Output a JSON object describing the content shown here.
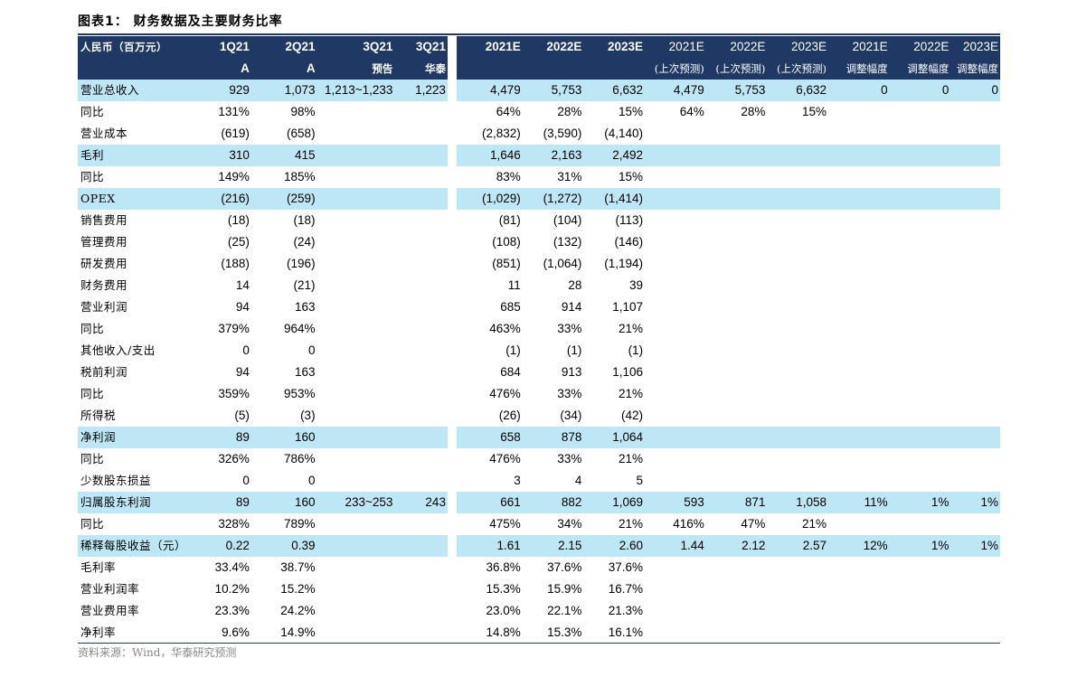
{
  "title": "图表1：  财务数据及主要财务比率",
  "source": "资料来源：Wind，华泰研究预测",
  "header": {
    "label": "人民币（百万元）",
    "cols_top": [
      "1Q21",
      "2Q21",
      "3Q21",
      "3Q21",
      "2021E",
      "2022E",
      "2023E",
      "2021E",
      "2022E",
      "2023E",
      "2021E",
      "2022E",
      "2023E"
    ],
    "cols_bottom": [
      "A",
      "A",
      "预告",
      "华泰",
      "",
      "",
      "",
      "(上次预测)",
      "(上次预测)",
      "(上次预测)",
      "调整幅度",
      "调整幅度",
      "调整幅度"
    ]
  },
  "rows": [
    {
      "label": "营业总收入",
      "hl": true,
      "v": [
        "929",
        "1,073",
        "1,213~1,233",
        "1,223",
        "4,479",
        "5,753",
        "6,632",
        "4,479",
        "5,753",
        "6,632",
        "0",
        "0",
        "0"
      ]
    },
    {
      "label": "同比",
      "hl": false,
      "v": [
        "131%",
        "98%",
        "",
        "",
        "64%",
        "28%",
        "15%",
        "64%",
        "28%",
        "15%",
        "",
        "",
        ""
      ]
    },
    {
      "label": "营业成本",
      "hl": false,
      "v": [
        "(619)",
        "(658)",
        "",
        "",
        "(2,832)",
        "(3,590)",
        "(4,140)",
        "",
        "",
        "",
        "",
        "",
        ""
      ]
    },
    {
      "label": "毛利",
      "hl": true,
      "v": [
        "310",
        "415",
        "",
        "",
        "1,646",
        "2,163",
        "2,492",
        "",
        "",
        "",
        "",
        "",
        ""
      ]
    },
    {
      "label": "同比",
      "hl": false,
      "v": [
        "149%",
        "185%",
        "",
        "",
        "83%",
        "31%",
        "15%",
        "",
        "",
        "",
        "",
        "",
        ""
      ]
    },
    {
      "label": "OPEX",
      "hl": true,
      "v": [
        "(216)",
        "(259)",
        "",
        "",
        "(1,029)",
        "(1,272)",
        "(1,414)",
        "",
        "",
        "",
        "",
        "",
        ""
      ]
    },
    {
      "label": "销售费用",
      "hl": false,
      "v": [
        "(18)",
        "(18)",
        "",
        "",
        "(81)",
        "(104)",
        "(113)",
        "",
        "",
        "",
        "",
        "",
        ""
      ]
    },
    {
      "label": "管理费用",
      "hl": false,
      "v": [
        "(25)",
        "(24)",
        "",
        "",
        "(108)",
        "(132)",
        "(146)",
        "",
        "",
        "",
        "",
        "",
        ""
      ]
    },
    {
      "label": "研发费用",
      "hl": false,
      "v": [
        "(188)",
        "(196)",
        "",
        "",
        "(851)",
        "(1,064)",
        "(1,194)",
        "",
        "",
        "",
        "",
        "",
        ""
      ]
    },
    {
      "label": "财务费用",
      "hl": false,
      "v": [
        "14",
        "(21)",
        "",
        "",
        "11",
        "28",
        "39",
        "",
        "",
        "",
        "",
        "",
        ""
      ]
    },
    {
      "label": "营业利润",
      "hl": false,
      "v": [
        "94",
        "163",
        "",
        "",
        "685",
        "914",
        "1,107",
        "",
        "",
        "",
        "",
        "",
        ""
      ]
    },
    {
      "label": "同比",
      "hl": false,
      "v": [
        "379%",
        "964%",
        "",
        "",
        "463%",
        "33%",
        "21%",
        "",
        "",
        "",
        "",
        "",
        ""
      ]
    },
    {
      "label": "其他收入/支出",
      "hl": false,
      "v": [
        "0",
        "0",
        "",
        "",
        "(1)",
        "(1)",
        "(1)",
        "",
        "",
        "",
        "",
        "",
        ""
      ]
    },
    {
      "label": "税前利润",
      "hl": false,
      "v": [
        "94",
        "163",
        "",
        "",
        "684",
        "913",
        "1,106",
        "",
        "",
        "",
        "",
        "",
        ""
      ]
    },
    {
      "label": "同比",
      "hl": false,
      "v": [
        "359%",
        "953%",
        "",
        "",
        "476%",
        "33%",
        "21%",
        "",
        "",
        "",
        "",
        "",
        ""
      ]
    },
    {
      "label": "所得税",
      "hl": false,
      "v": [
        "(5)",
        "(3)",
        "",
        "",
        "(26)",
        "(34)",
        "(42)",
        "",
        "",
        "",
        "",
        "",
        ""
      ]
    },
    {
      "label": "净利润",
      "hl": true,
      "v": [
        "89",
        "160",
        "",
        "",
        "658",
        "878",
        "1,064",
        "",
        "",
        "",
        "",
        "",
        ""
      ]
    },
    {
      "label": "同比",
      "hl": false,
      "v": [
        "326%",
        "786%",
        "",
        "",
        "476%",
        "33%",
        "21%",
        "",
        "",
        "",
        "",
        "",
        ""
      ]
    },
    {
      "label": "少数股东损益",
      "hl": false,
      "v": [
        "0",
        "0",
        "",
        "",
        "3",
        "4",
        "5",
        "",
        "",
        "",
        "",
        "",
        ""
      ]
    },
    {
      "label": "归属股东利润",
      "hl": true,
      "v": [
        "89",
        "160",
        "233~253",
        "243",
        "661",
        "882",
        "1,069",
        "593",
        "871",
        "1,058",
        "11%",
        "1%",
        "1%"
      ]
    },
    {
      "label": "同比",
      "hl": false,
      "v": [
        "328%",
        "789%",
        "",
        "",
        "475%",
        "34%",
        "21%",
        "416%",
        "47%",
        "21%",
        "",
        "",
        ""
      ]
    },
    {
      "label": "稀释每股收益（元）",
      "hl": true,
      "v": [
        "0.22",
        "0.39",
        "",
        "",
        "1.61",
        "2.15",
        "2.60",
        "1.44",
        "2.12",
        "2.57",
        "12%",
        "1%",
        "1%"
      ]
    },
    {
      "label": "毛利率",
      "hl": false,
      "v": [
        "33.4%",
        "38.7%",
        "",
        "",
        "36.8%",
        "37.6%",
        "37.6%",
        "",
        "",
        "",
        "",
        "",
        ""
      ]
    },
    {
      "label": "营业利润率",
      "hl": false,
      "v": [
        "10.2%",
        "15.2%",
        "",
        "",
        "15.3%",
        "15.9%",
        "16.7%",
        "",
        "",
        "",
        "",
        "",
        ""
      ]
    },
    {
      "label": "营业费用率",
      "hl": false,
      "v": [
        "23.3%",
        "24.2%",
        "",
        "",
        "23.0%",
        "22.1%",
        "21.3%",
        "",
        "",
        "",
        "",
        "",
        ""
      ]
    },
    {
      "label": "净利率",
      "hl": false,
      "v": [
        "9.6%",
        "14.9%",
        "",
        "",
        "14.8%",
        "15.3%",
        "16.1%",
        "",
        "",
        "",
        "",
        "",
        ""
      ]
    }
  ],
  "colors": {
    "header_bg": "#1f3864",
    "highlight_bg": "#bde7f5"
  }
}
